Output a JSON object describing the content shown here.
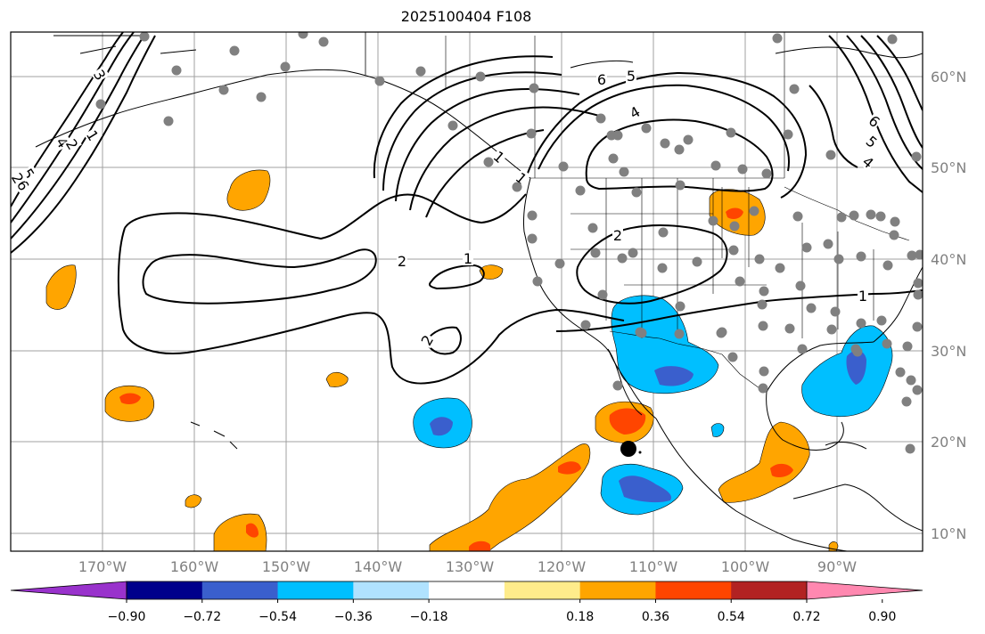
{
  "title": "2025100404 F108",
  "map": {
    "lon_ticks": [
      "170°W",
      "160°W",
      "150°W",
      "140°W",
      "130°W",
      "120°W",
      "110°W",
      "100°W",
      "90°W"
    ],
    "lat_ticks": [
      "60°N",
      "50°N",
      "40°N",
      "30°N",
      "20°N",
      "10°N"
    ],
    "contour_labels": [
      "6",
      "5",
      "4",
      "3",
      "2",
      "1",
      "2",
      "1",
      "2",
      "2",
      "1",
      "6",
      "5",
      "4",
      "1",
      "5",
      "4",
      "6",
      "1",
      "2"
    ]
  },
  "colorbar": {
    "tick_labels": [
      "−0.90",
      "−0.72",
      "−0.54",
      "−0.36",
      "−0.18",
      "0.18",
      "0.36",
      "0.54",
      "0.72",
      "0.90"
    ],
    "colors": [
      "#9932cc",
      "#00008b",
      "#3a5fcd",
      "#00bfff",
      "#b0e2ff",
      "#ffffff",
      "#ffec8b",
      "#ffa500",
      "#ff4500",
      "#b22222",
      "#ff88b0"
    ]
  },
  "colors": {
    "land_outline": "#000000",
    "grid": "#a0a0a0",
    "station": "#808080"
  }
}
